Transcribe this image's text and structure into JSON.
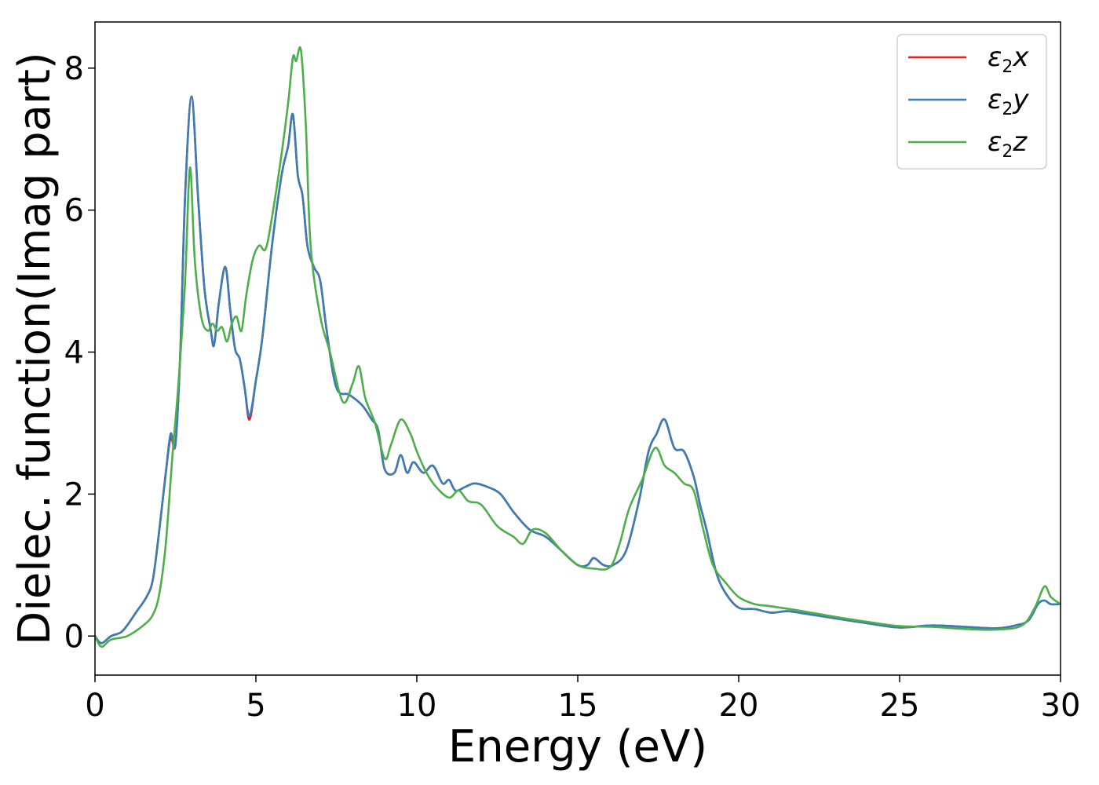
{
  "chart_data": {
    "type": "line",
    "xlabel": "Energy (eV)",
    "ylabel": "Dielec. function(Imag part)",
    "xlim": [
      0,
      30
    ],
    "ylim": [
      -0.55,
      8.65
    ],
    "xticks": [
      0,
      5,
      10,
      15,
      20,
      25,
      30
    ],
    "yticks": [
      0,
      2,
      4,
      6,
      8
    ],
    "legend_position": "top-right",
    "grid": false,
    "series": [
      {
        "name": "ε₂x",
        "legend": {
          "base": "ε",
          "sub": "2",
          "tail": "x"
        },
        "color": "#e41a1c",
        "x": [
          0,
          0.2,
          0.5,
          0.8,
          1.0,
          1.3,
          1.6,
          1.8,
          2.0,
          2.2,
          2.35,
          2.5,
          2.65,
          2.8,
          3.0,
          3.2,
          3.4,
          3.6,
          3.7,
          3.85,
          4.05,
          4.2,
          4.35,
          4.5,
          4.65,
          4.8,
          5.0,
          5.2,
          5.5,
          5.8,
          6.0,
          6.15,
          6.3,
          6.45,
          6.6,
          6.8,
          7.0,
          7.2,
          7.5,
          7.9,
          8.3,
          8.6,
          8.8,
          9.0,
          9.3,
          9.5,
          9.7,
          9.9,
          10.2,
          10.5,
          10.8,
          11.0,
          11.2,
          11.5,
          11.8,
          12.2,
          12.6,
          13.0,
          13.5,
          14.0,
          14.5,
          15.0,
          15.3,
          15.5,
          15.8,
          16.1,
          16.5,
          16.9,
          17.2,
          17.45,
          17.7,
          18.0,
          18.3,
          18.6,
          18.8,
          19.0,
          19.3,
          19.6,
          20.0,
          20.5,
          21.0,
          21.5,
          22.0,
          23.0,
          24.0,
          25.0,
          26.0,
          27.0,
          28.0,
          28.6,
          29.0,
          29.3,
          29.5,
          29.7,
          30.0
        ],
        "values": [
          0.0,
          -0.1,
          0.0,
          0.05,
          0.15,
          0.35,
          0.55,
          0.8,
          1.5,
          2.3,
          2.8,
          2.7,
          4.0,
          6.2,
          7.6,
          6.2,
          4.9,
          4.3,
          4.1,
          4.7,
          5.2,
          4.6,
          4.05,
          3.9,
          3.5,
          3.05,
          3.6,
          4.2,
          5.5,
          6.5,
          6.9,
          7.35,
          6.5,
          6.2,
          5.5,
          5.2,
          5.0,
          4.3,
          3.5,
          3.4,
          3.25,
          3.05,
          2.9,
          2.35,
          2.3,
          2.55,
          2.3,
          2.45,
          2.3,
          2.4,
          2.15,
          2.2,
          2.05,
          2.1,
          2.15,
          2.1,
          2.0,
          1.75,
          1.5,
          1.4,
          1.2,
          1.0,
          1.0,
          1.1,
          1.0,
          1.0,
          1.2,
          1.9,
          2.6,
          2.85,
          3.05,
          2.65,
          2.6,
          2.25,
          1.85,
          1.5,
          0.9,
          0.6,
          0.4,
          0.38,
          0.33,
          0.35,
          0.32,
          0.25,
          0.18,
          0.12,
          0.15,
          0.13,
          0.11,
          0.15,
          0.22,
          0.45,
          0.5,
          0.45,
          0.45
        ]
      },
      {
        "name": "ε₂y",
        "legend": {
          "base": "ε",
          "sub": "2",
          "tail": "y"
        },
        "color": "#377eb8",
        "x": [
          0,
          0.2,
          0.5,
          0.8,
          1.0,
          1.3,
          1.6,
          1.8,
          2.0,
          2.2,
          2.35,
          2.5,
          2.65,
          2.8,
          3.0,
          3.2,
          3.4,
          3.6,
          3.7,
          3.85,
          4.05,
          4.2,
          4.35,
          4.5,
          4.65,
          4.8,
          5.0,
          5.2,
          5.5,
          5.8,
          6.0,
          6.15,
          6.3,
          6.45,
          6.6,
          6.8,
          7.0,
          7.2,
          7.5,
          7.9,
          8.3,
          8.6,
          8.8,
          9.0,
          9.3,
          9.5,
          9.7,
          9.9,
          10.2,
          10.5,
          10.8,
          11.0,
          11.2,
          11.5,
          11.8,
          12.2,
          12.6,
          13.0,
          13.5,
          14.0,
          14.5,
          15.0,
          15.3,
          15.5,
          15.8,
          16.1,
          16.5,
          16.9,
          17.2,
          17.45,
          17.7,
          18.0,
          18.3,
          18.6,
          18.8,
          19.0,
          19.3,
          19.6,
          20.0,
          20.5,
          21.0,
          21.5,
          22.0,
          23.0,
          24.0,
          25.0,
          26.0,
          27.0,
          28.0,
          28.6,
          29.0,
          29.3,
          29.5,
          29.7,
          30.0
        ],
        "values": [
          0.0,
          -0.1,
          0.0,
          0.05,
          0.15,
          0.35,
          0.55,
          0.8,
          1.5,
          2.3,
          2.85,
          2.7,
          4.0,
          6.2,
          7.6,
          6.2,
          4.9,
          4.3,
          4.1,
          4.7,
          5.2,
          4.6,
          4.05,
          3.9,
          3.5,
          3.1,
          3.6,
          4.2,
          5.5,
          6.5,
          6.9,
          7.35,
          6.5,
          6.2,
          5.5,
          5.2,
          5.0,
          4.3,
          3.5,
          3.4,
          3.25,
          3.05,
          2.9,
          2.35,
          2.3,
          2.55,
          2.3,
          2.45,
          2.3,
          2.4,
          2.15,
          2.2,
          2.05,
          2.1,
          2.15,
          2.1,
          2.0,
          1.75,
          1.5,
          1.4,
          1.2,
          1.0,
          1.0,
          1.1,
          1.0,
          1.0,
          1.2,
          1.9,
          2.6,
          2.85,
          3.05,
          2.65,
          2.6,
          2.25,
          1.85,
          1.5,
          0.9,
          0.6,
          0.4,
          0.38,
          0.33,
          0.35,
          0.32,
          0.25,
          0.18,
          0.12,
          0.15,
          0.13,
          0.11,
          0.15,
          0.22,
          0.45,
          0.5,
          0.45,
          0.45
        ]
      },
      {
        "name": "ε₂z",
        "legend": {
          "base": "ε",
          "sub": "2",
          "tail": "z"
        },
        "color": "#4daf4a",
        "x": [
          0,
          0.2,
          0.5,
          1.0,
          1.5,
          1.8,
          2.0,
          2.2,
          2.4,
          2.6,
          2.8,
          2.95,
          3.1,
          3.3,
          3.5,
          3.65,
          3.8,
          3.95,
          4.1,
          4.25,
          4.4,
          4.55,
          4.7,
          4.9,
          5.1,
          5.3,
          5.5,
          5.8,
          6.0,
          6.15,
          6.25,
          6.4,
          6.55,
          6.7,
          7.0,
          7.3,
          7.7,
          8.0,
          8.2,
          8.4,
          8.7,
          9.0,
          9.2,
          9.5,
          9.8,
          10.0,
          10.3,
          10.6,
          11.0,
          11.3,
          11.6,
          12.0,
          12.5,
          13.0,
          13.3,
          13.6,
          14.0,
          14.5,
          15.0,
          15.5,
          16.0,
          16.3,
          16.6,
          17.0,
          17.4,
          17.7,
          18.0,
          18.3,
          18.6,
          18.9,
          19.2,
          19.6,
          20.0,
          20.5,
          21.0,
          22.0,
          23.0,
          24.0,
          25.0,
          26.0,
          27.0,
          28.0,
          28.8,
          29.2,
          29.5,
          29.7,
          30.0
        ],
        "values": [
          0.0,
          -0.15,
          -0.05,
          0.0,
          0.15,
          0.3,
          0.6,
          1.3,
          2.5,
          3.6,
          5.0,
          6.6,
          5.3,
          4.5,
          4.3,
          4.4,
          4.3,
          4.35,
          4.15,
          4.4,
          4.5,
          4.3,
          4.8,
          5.3,
          5.5,
          5.45,
          5.9,
          6.8,
          7.5,
          8.15,
          8.1,
          8.25,
          7.2,
          5.5,
          4.5,
          4.0,
          3.3,
          3.55,
          3.8,
          3.35,
          3.0,
          2.5,
          2.7,
          3.05,
          2.85,
          2.6,
          2.3,
          2.1,
          1.95,
          2.05,
          1.9,
          1.85,
          1.55,
          1.4,
          1.3,
          1.5,
          1.45,
          1.2,
          1.0,
          0.95,
          0.97,
          1.3,
          1.8,
          2.2,
          2.65,
          2.4,
          2.3,
          2.15,
          2.05,
          1.5,
          1.0,
          0.75,
          0.55,
          0.45,
          0.42,
          0.35,
          0.27,
          0.2,
          0.14,
          0.13,
          0.1,
          0.09,
          0.15,
          0.4,
          0.7,
          0.55,
          0.45
        ]
      }
    ]
  }
}
